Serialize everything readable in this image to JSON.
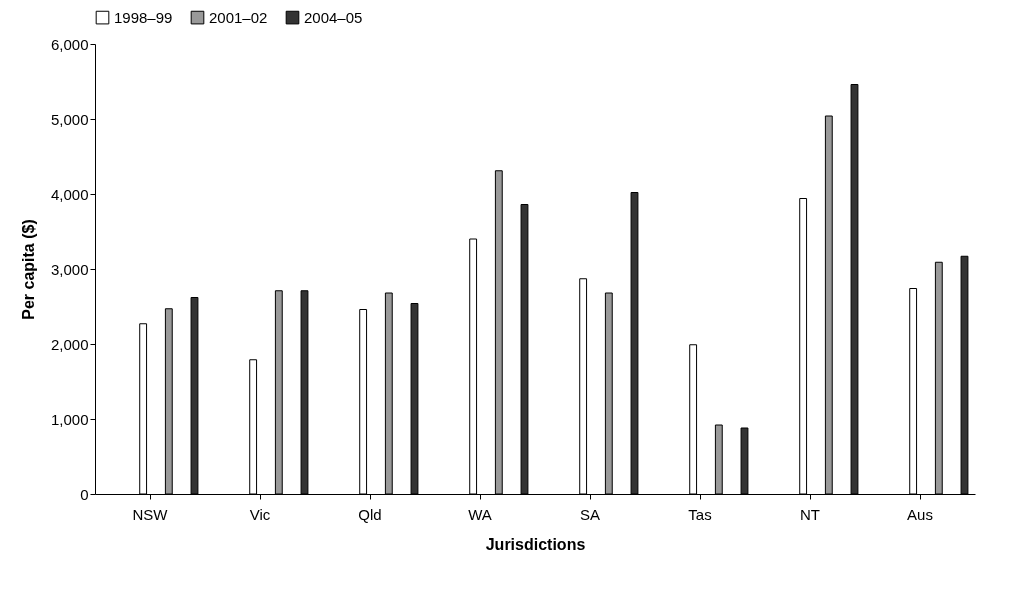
{
  "chart_data": {
    "type": "bar",
    "xlabel": "Jurisdictions",
    "ylabel": "Per capita ($)",
    "categories": [
      "NSW",
      "Vic",
      "Qld",
      "WA",
      "SA",
      "Tas",
      "NT",
      "Aus"
    ],
    "series": [
      {
        "name": "1998–99",
        "color": "#ffffff",
        "values": [
          2270,
          1790,
          2460,
          3400,
          2870,
          1990,
          3940,
          2740
        ]
      },
      {
        "name": "2001–02",
        "color": "#999999",
        "values": [
          2470,
          2710,
          2680,
          4310,
          2680,
          920,
          5040,
          3090
        ]
      },
      {
        "name": "2004–05",
        "color": "#333333",
        "values": [
          2620,
          2710,
          2540,
          3860,
          4020,
          880,
          5460,
          3170
        ]
      }
    ],
    "ylim": [
      0,
      6000
    ],
    "yticks": [
      {
        "value": 0,
        "label": "0"
      },
      {
        "value": 1000,
        "label": "1,000"
      },
      {
        "value": 2000,
        "label": "2,000"
      },
      {
        "value": 3000,
        "label": "3,000"
      },
      {
        "value": 4000,
        "label": "4,000"
      },
      {
        "value": 5000,
        "label": "5,000"
      },
      {
        "value": 6000,
        "label": "6,000"
      }
    ],
    "grid": false,
    "legend": "top"
  }
}
